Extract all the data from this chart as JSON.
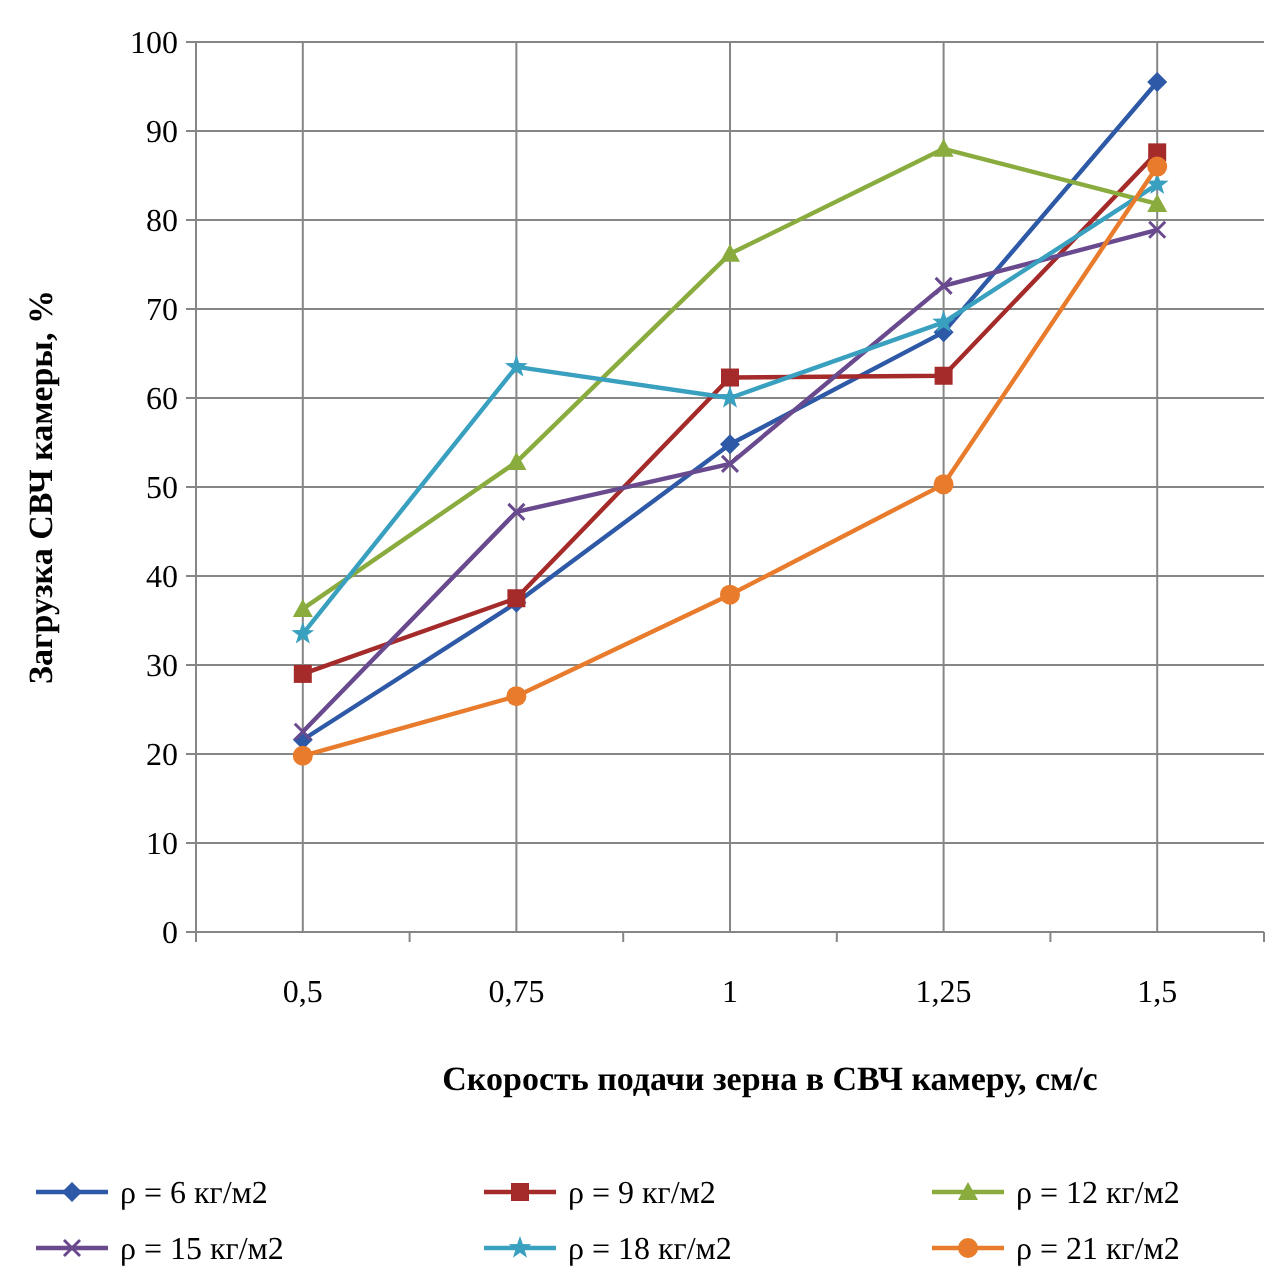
{
  "chart_data": {
    "type": "line",
    "xlabel": "Скорость подачи зерна в СВЧ камеру, см/с",
    "ylabel": "Загрузка СВЧ камеры, %",
    "categories": [
      "0,5",
      "0,75",
      "1",
      "1,25",
      "1,5"
    ],
    "ylim": [
      0,
      100
    ],
    "yticks": [
      0,
      10,
      20,
      30,
      40,
      50,
      60,
      70,
      80,
      90,
      100
    ],
    "grid": true,
    "legend": "bottom",
    "series": [
      {
        "name": "ρ = 6 кг/м2",
        "color": "#2e59a7",
        "marker": "diamond",
        "values": [
          21.6,
          37,
          54.8,
          67.4,
          95.5
        ]
      },
      {
        "name": "ρ = 9 кг/м2",
        "color": "#a52a2a",
        "marker": "square",
        "values": [
          29,
          37.5,
          62.3,
          62.5,
          87.6
        ]
      },
      {
        "name": "ρ = 12 кг/м2",
        "color": "#8aac3e",
        "marker": "triangle",
        "values": [
          36.3,
          52.8,
          76.2,
          88,
          81.8
        ]
      },
      {
        "name": "ρ = 15 кг/м2",
        "color": "#6a4a8e",
        "marker": "cross",
        "values": [
          22.5,
          47.2,
          52.6,
          72.6,
          78.9
        ]
      },
      {
        "name": "ρ = 18 кг/м2",
        "color": "#3aa0c0",
        "marker": "star",
        "values": [
          33.5,
          63.5,
          60,
          68.5,
          84
        ]
      },
      {
        "name": "ρ = 21 кг/м2",
        "color": "#e87c2c",
        "marker": "circle",
        "values": [
          19.8,
          26.5,
          37.9,
          50.3,
          86
        ]
      }
    ]
  }
}
